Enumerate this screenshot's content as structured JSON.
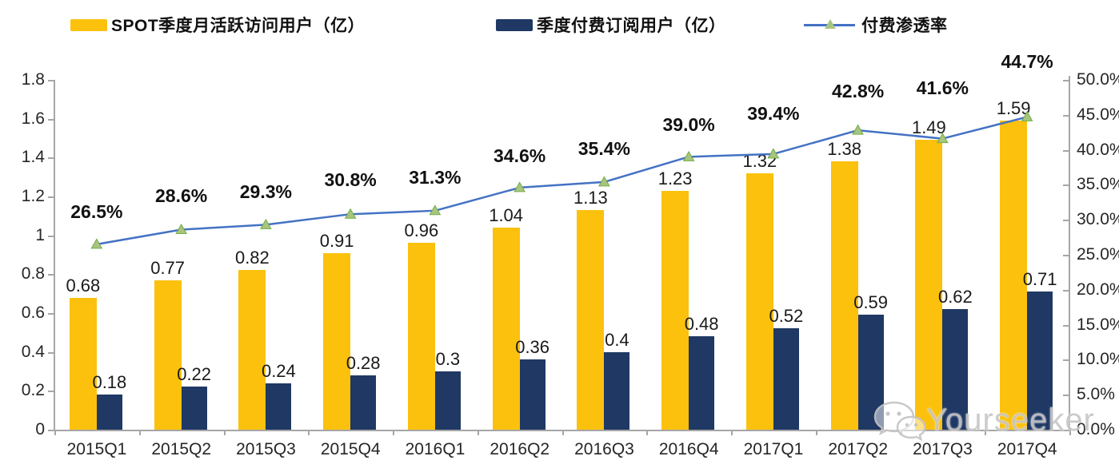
{
  "legend": {
    "items": [
      {
        "label": "SPOT季度月活跃访问用户（亿）"
      },
      {
        "label": "季度付费订阅用户（亿）"
      },
      {
        "label": "付费渗透率"
      }
    ]
  },
  "colors": {
    "mau_bar": "#FBC10D",
    "sub_bar": "#1F3864",
    "line": "#4472C4",
    "marker_fill": "#A9C47F",
    "marker_stroke": "#70AD47",
    "axis": "#A6A6A6",
    "label_text": "#1a1a1a",
    "watermark": "#c7c7c7"
  },
  "chart_data": {
    "type": "bar",
    "subtype": "combo-bar-line-dual-axis",
    "categories": [
      "2015Q1",
      "2015Q2",
      "2015Q3",
      "2015Q4",
      "2016Q1",
      "2016Q2",
      "2016Q3",
      "2016Q4",
      "2017Q1",
      "2017Q2",
      "2017Q3",
      "2017Q4"
    ],
    "series": [
      {
        "name": "SPOT季度月活跃访问用户（亿）",
        "type": "bar",
        "axis": "left",
        "color": "#FBC10D",
        "values": [
          0.68,
          0.77,
          0.82,
          0.91,
          0.96,
          1.04,
          1.13,
          1.23,
          1.32,
          1.38,
          1.49,
          1.59
        ],
        "labels": [
          "0.68",
          "0.77",
          "0.82",
          "0.91",
          "0.96",
          "1.04",
          "1.13",
          "1.23",
          "1.32",
          "1.38",
          "1.49",
          "1.59"
        ]
      },
      {
        "name": "季度付费订阅用户（亿）",
        "type": "bar",
        "axis": "left",
        "color": "#1F3864",
        "values": [
          0.18,
          0.22,
          0.24,
          0.28,
          0.3,
          0.36,
          0.4,
          0.48,
          0.52,
          0.59,
          0.62,
          0.71
        ],
        "labels": [
          "0.18",
          "0.22",
          "0.24",
          "0.28",
          "0.3",
          "0.36",
          "0.4",
          "0.48",
          "0.52",
          "0.59",
          "0.62",
          "0.71"
        ]
      },
      {
        "name": "付费渗透率",
        "type": "line",
        "axis": "right",
        "color": "#4472C4",
        "values": [
          26.5,
          28.6,
          29.3,
          30.8,
          31.3,
          34.6,
          35.4,
          39.0,
          39.4,
          42.8,
          41.6,
          44.7
        ],
        "labels": [
          "26.5%",
          "28.6%",
          "29.3%",
          "30.8%",
          "31.3%",
          "34.6%",
          "35.4%",
          "39.0%",
          "39.4%",
          "42.8%",
          "41.6%",
          "44.7%"
        ]
      }
    ],
    "left_axis": {
      "min": 0,
      "max": 1.8,
      "step": 0.2,
      "tick_labels": [
        "0",
        "0.2",
        "0.4",
        "0.6",
        "0.8",
        "1",
        "1.2",
        "1.4",
        "1.6",
        "1.8"
      ]
    },
    "right_axis": {
      "min": 0,
      "max": 50,
      "step": 5,
      "tick_labels": [
        "0.0%",
        "5.0%",
        "10.0%",
        "15.0%",
        "20.0%",
        "25.0%",
        "30.0%",
        "35.0%",
        "40.0%",
        "45.0%",
        "50.0%"
      ]
    },
    "grid": false,
    "legend_position": "top",
    "title": ""
  },
  "watermark": {
    "text": "Yourseeker",
    "icon": "wechat-icon"
  }
}
